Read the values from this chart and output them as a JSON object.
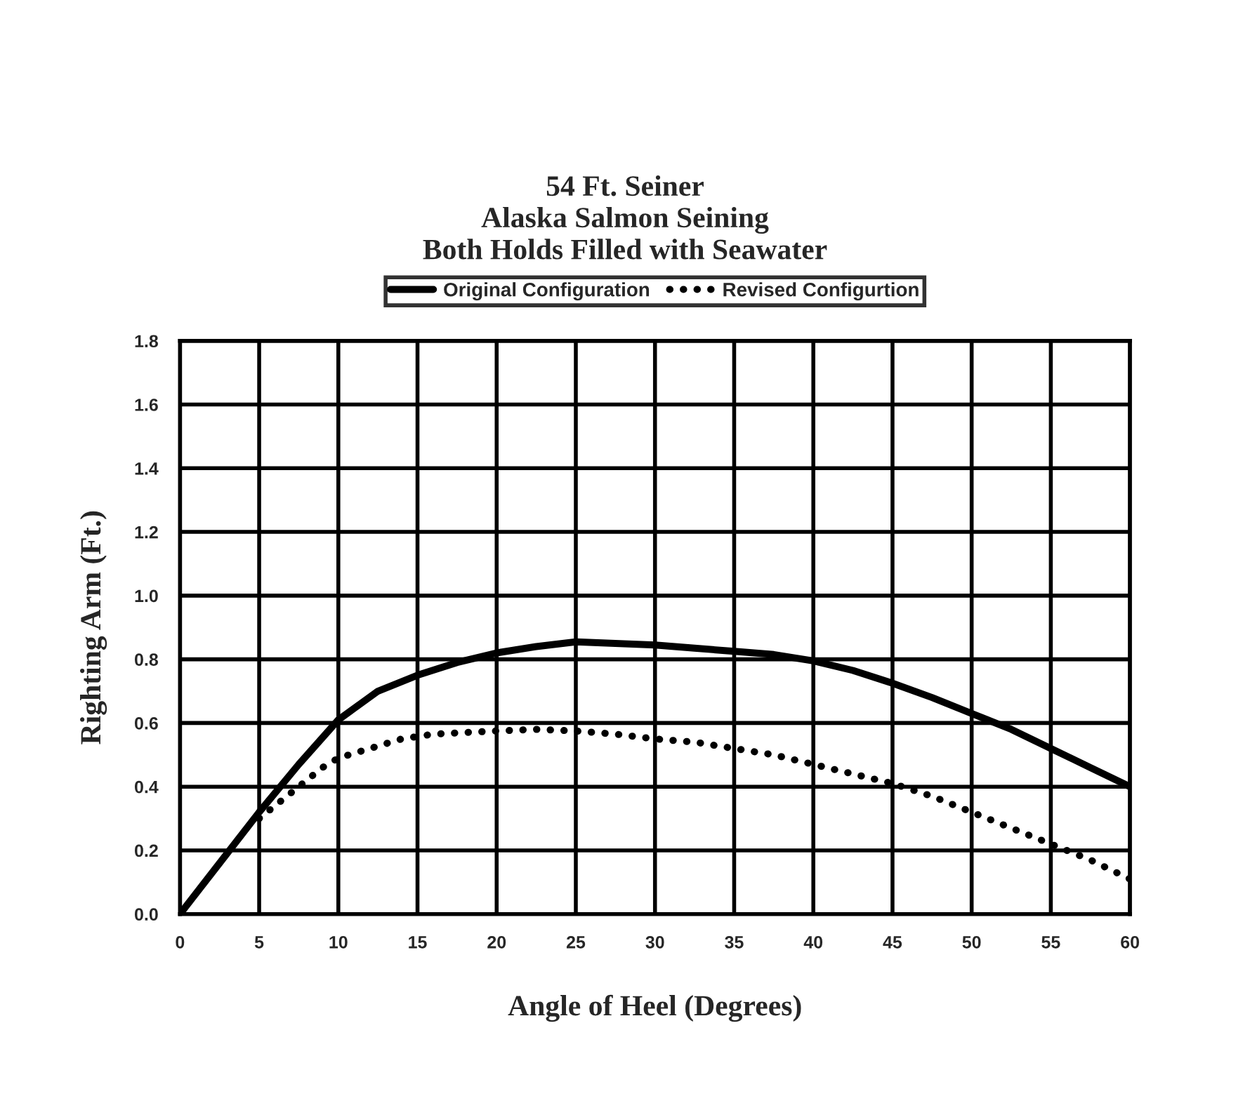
{
  "chart_data": {
    "type": "line",
    "title": "54 Ft. Seiner\nAlaska Salmon Seining\nBoth Holds Filled with Seawater",
    "xlabel": "Angle of Heel (Degrees)",
    "ylabel": "Righting Arm (Ft.)",
    "x": [
      0,
      2.5,
      5,
      7.5,
      10,
      12.5,
      15,
      17.5,
      20,
      22.5,
      25,
      27.5,
      30,
      32.5,
      35,
      37.5,
      40,
      42.5,
      45,
      47.5,
      50,
      52.5,
      55,
      57.5,
      60
    ],
    "series": [
      {
        "name": "Original Configuration",
        "color": "#000000",
        "line_style": "solid",
        "values": [
          0,
          0.16,
          0.32,
          0.47,
          0.61,
          0.7,
          0.75,
          0.79,
          0.82,
          0.84,
          0.855,
          0.85,
          0.845,
          0.835,
          0.825,
          0.815,
          0.795,
          0.765,
          0.725,
          0.68,
          0.63,
          0.58,
          0.52,
          0.46,
          0.4
        ]
      },
      {
        "name": "Revised Configurtion",
        "color": "#000000",
        "line_style": "dotted",
        "x": [
          5,
          6,
          7,
          8,
          9,
          10,
          12,
          14,
          16,
          18,
          20,
          22.5,
          25,
          27.5,
          30,
          32.5,
          35,
          37.5,
          40,
          42.5,
          45,
          47.5,
          50,
          52.5,
          55,
          57.5,
          60
        ],
        "values": [
          0.3,
          0.34,
          0.38,
          0.42,
          0.46,
          0.49,
          0.52,
          0.55,
          0.565,
          0.57,
          0.575,
          0.58,
          0.575,
          0.565,
          0.55,
          0.54,
          0.52,
          0.5,
          0.47,
          0.44,
          0.41,
          0.37,
          0.32,
          0.27,
          0.22,
          0.17,
          0.11
        ]
      }
    ],
    "xlim": [
      0,
      60
    ],
    "xticks": [
      0,
      5,
      10,
      15,
      20,
      25,
      30,
      35,
      40,
      45,
      50,
      55,
      60
    ],
    "ylim": [
      0,
      1.8
    ],
    "yticks": [
      {
        "value": 0,
        "label": "0.0"
      },
      {
        "value": 0.2,
        "label": "0.2"
      },
      {
        "value": 0.4,
        "label": "0.4"
      },
      {
        "value": 0.6,
        "label": "0.6"
      },
      {
        "value": 0.8,
        "label": "0.8"
      },
      {
        "value": 1.0,
        "label": "1.0"
      },
      {
        "value": 1.2,
        "label": "1.2"
      },
      {
        "value": 1.4,
        "label": "1.4"
      },
      {
        "value": 1.6,
        "label": "1.6"
      },
      {
        "value": 1.8,
        "label": "1.8"
      }
    ],
    "grid": true,
    "legend": "top"
  }
}
